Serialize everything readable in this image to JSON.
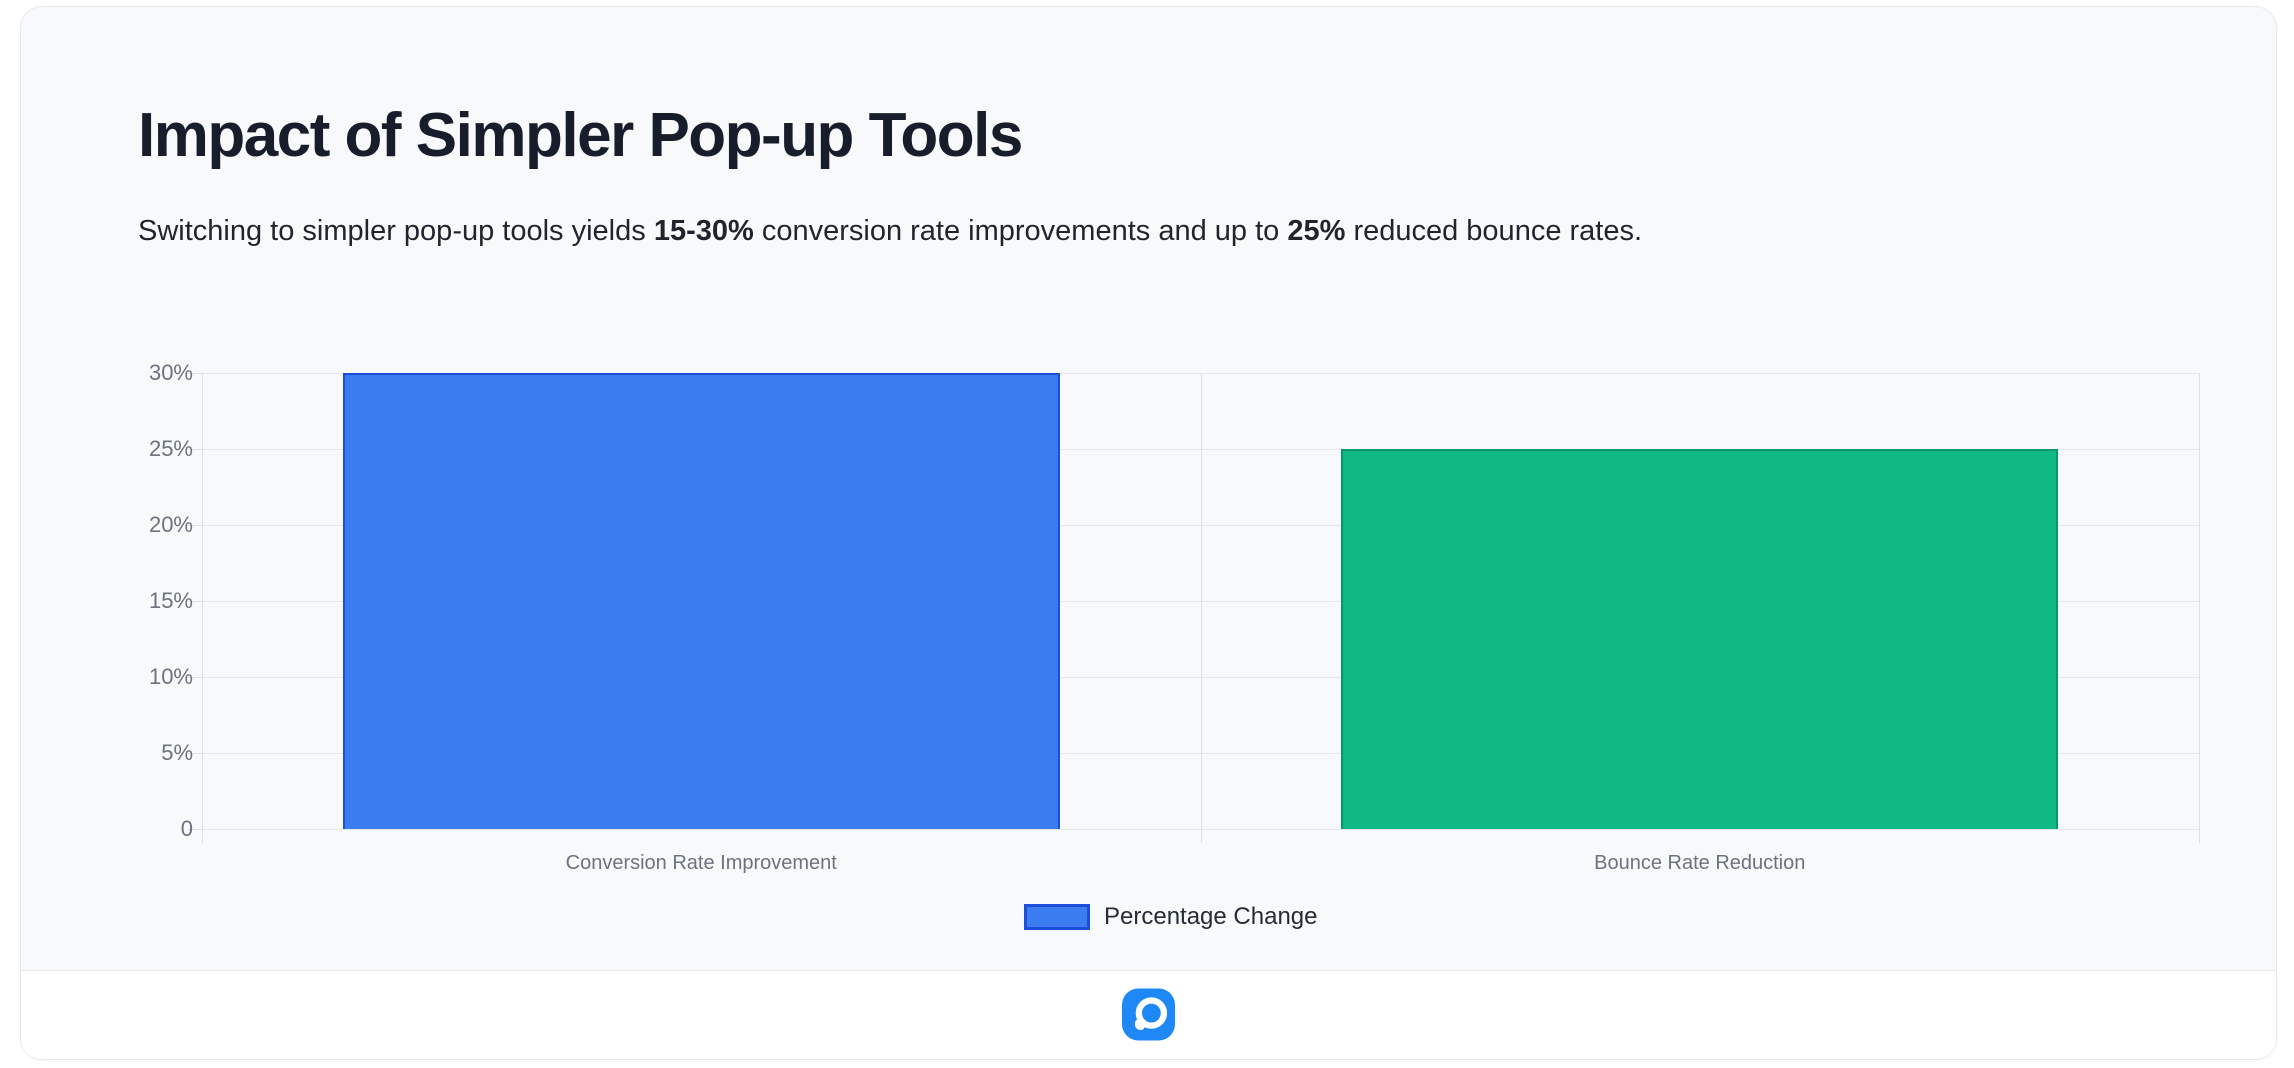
{
  "header": {
    "title": "Impact of Simpler Pop-up Tools"
  },
  "subtitle": {
    "segments": [
      {
        "text": "Switching to simpler pop-up tools yields ",
        "bold": false
      },
      {
        "text": "15-30%",
        "bold": true
      },
      {
        "text": " conversion rate improvements and up to ",
        "bold": false
      },
      {
        "text": "25%",
        "bold": true
      },
      {
        "text": " reduced bounce rates.",
        "bold": false
      }
    ]
  },
  "chart_data": {
    "type": "bar",
    "title": "Impact of Simpler Pop-up Tools",
    "categories": [
      "Conversion Rate Improvement",
      "Bounce Rate Reduction"
    ],
    "values": [
      30,
      25
    ],
    "unit": "%",
    "xlabel": "",
    "ylabel": "",
    "ylim": [
      0,
      30
    ],
    "grid": "on",
    "y_ticks": [
      {
        "value": 30,
        "label": "30%"
      },
      {
        "value": 25,
        "label": "25%"
      },
      {
        "value": 20,
        "label": "20%"
      },
      {
        "value": 15,
        "label": "15%"
      },
      {
        "value": 10,
        "label": "10%"
      },
      {
        "value": 5,
        "label": "5%"
      },
      {
        "value": 0,
        "label": "0"
      }
    ],
    "bar_colors": [
      {
        "fill": "#3B7CF0",
        "border": "#1D4ED8"
      },
      {
        "fill": "#10B981",
        "border": "#059669"
      }
    ],
    "legend": {
      "position": "bottom",
      "label": "Percentage Change",
      "swatch_fill": "#3B7CF0",
      "swatch_border": "#1D4ED8"
    }
  },
  "footer": {
    "logo": "speech-bubble-p-logo",
    "logo_color": "#1E88F7"
  },
  "colors": {
    "card_background": "#f8f9fb",
    "card_border": "#e7e9ee",
    "title_text": "#181d2b",
    "axis_text": "#6b7280",
    "gridline": "#e5e7eb"
  }
}
